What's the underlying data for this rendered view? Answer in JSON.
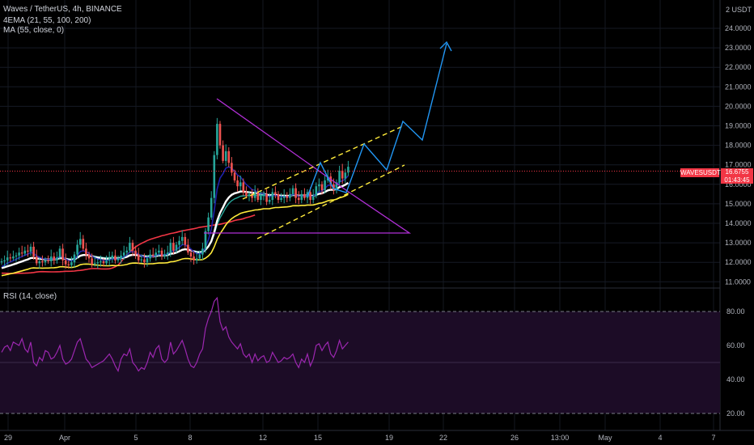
{
  "header": {
    "symbol_line": "Waves / TetherUS, 4h, BINANCE",
    "ema_line": "4EMA (21, 55, 100, 200)",
    "ma_line": "MA (55, close, 0)"
  },
  "rsi_header": "RSI (14, close)",
  "currency_label": "2 USDT",
  "price_tag": {
    "symbol": "WAVESUSDT",
    "price": "16.6755",
    "countdown": "01:43:45",
    "color": "#f23645"
  },
  "colors": {
    "background": "#000000",
    "candle_up": "#26a69a",
    "candle_down": "#ef5350",
    "ema21": "#1e22aa",
    "ema55": "#ffffff",
    "ema100": "#ffeb3b",
    "ema200": "#f23645",
    "ma55": "#26a69a",
    "triangle": "#b12fd6",
    "channel": "#ffeb3b",
    "projection": "#2196f3",
    "rsi": "#9c27b0",
    "rsi_band": "#1c0c26"
  },
  "chart_data": {
    "type": "candlestick",
    "symbol": "WAVESUSDT",
    "timeframe": "4h",
    "exchange": "BINANCE",
    "y_axis_labels": [
      "24.0000",
      "23.0000",
      "22.0000",
      "21.0000",
      "20.0000",
      "19.0000",
      "18.0000",
      "17.0000",
      "16.0000",
      "15.0000",
      "14.0000",
      "13.0000",
      "12.0000",
      "11.0000"
    ],
    "ylim": [
      10.5,
      25.0
    ],
    "x_tick_labels": [
      "29",
      "Apr",
      "5",
      "8",
      "12",
      "15",
      "19",
      "22",
      "26",
      "13:00",
      "May",
      "4",
      "7"
    ],
    "last_price": 16.6755,
    "close_series": [
      12.05,
      12.1,
      12.25,
      12.2,
      12.3,
      12.35,
      12.5,
      12.45,
      12.6,
      12.55,
      12.8,
      12.3,
      11.95,
      12.05,
      12.0,
      12.1,
      12.05,
      12.3,
      12.1,
      12.25,
      12.7,
      12.1,
      11.9,
      11.85,
      12.0,
      12.4,
      12.9,
      13.2,
      12.7,
      12.4,
      12.2,
      11.9,
      11.95,
      12.0,
      12.05,
      11.95,
      12.1,
      12.2,
      12.35,
      12.1,
      12.2,
      12.35,
      12.5,
      12.6,
      13.0,
      12.6,
      12.4,
      12.1,
      12.15,
      12.0,
      12.2,
      12.4,
      12.35,
      12.5,
      12.6,
      12.3,
      12.4,
      12.5,
      13.0,
      12.6,
      12.9,
      13.1,
      13.3,
      12.9,
      12.5,
      12.3,
      12.1,
      12.2,
      12.4,
      12.7,
      13.6,
      14.3,
      15.3,
      17.5,
      19.1,
      18.0,
      17.2,
      17.7,
      17.1,
      16.6,
      16.2,
      15.9,
      16.1,
      15.6,
      15.4,
      15.5,
      15.3,
      15.6,
      15.2,
      15.4,
      15.5,
      15.1,
      15.2,
      15.6,
      15.5,
      15.2,
      15.3,
      15.4,
      15.3,
      15.5,
      15.8,
      15.3,
      15.2,
      15.5,
      15.3,
      15.6,
      15.2,
      15.4,
      15.9,
      16.0,
      15.7,
      16.2,
      16.4,
      16.0,
      15.7,
      16.1,
      16.7,
      16.3,
      16.6,
      16.9
    ],
    "triangle": [
      [
        20.45,
        0.0
      ],
      [
        13.5,
        1.0
      ]
    ],
    "rsi": {
      "period": 14,
      "levels": [
        80,
        20
      ],
      "y_axis_labels": [
        "80.00",
        "60.00",
        "40.00",
        "20.00"
      ],
      "ylim": [
        10,
        90
      ],
      "values": [
        56,
        59,
        60,
        57,
        62,
        61,
        60,
        64,
        58,
        56,
        62,
        50,
        48,
        53,
        51,
        57,
        56,
        52,
        53,
        56,
        60,
        52,
        49,
        50,
        52,
        57,
        62,
        64,
        58,
        52,
        50,
        47,
        48,
        49,
        50,
        51,
        53,
        55,
        52,
        48,
        45,
        52,
        55,
        54,
        58,
        50,
        48,
        45,
        47,
        46,
        50,
        56,
        53,
        58,
        60,
        52,
        50,
        52,
        62,
        55,
        57,
        60,
        63,
        58,
        52,
        48,
        47,
        50,
        55,
        58,
        70,
        76,
        80,
        86,
        88,
        74,
        69,
        71,
        65,
        62,
        60,
        58,
        61,
        55,
        53,
        55,
        50,
        55,
        51,
        53,
        54,
        50,
        51,
        56,
        53,
        50,
        51,
        53,
        52,
        53,
        55,
        50,
        47,
        52,
        50,
        55,
        48,
        52,
        60,
        61,
        57,
        60,
        62,
        55,
        53,
        57,
        63,
        58,
        60,
        62
      ]
    }
  }
}
